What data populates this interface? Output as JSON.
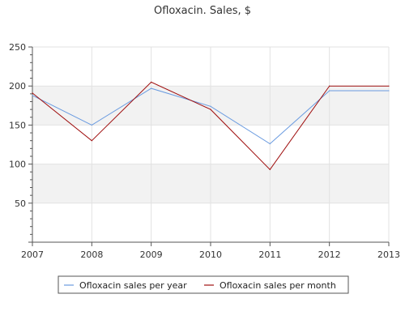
{
  "chart_data": {
    "type": "line",
    "title": "Ofloxacin. Sales, $",
    "xlabel": "",
    "ylabel": "",
    "x": [
      "2007",
      "2008",
      "2009",
      "2010",
      "2011",
      "2012",
      "2013"
    ],
    "ylim": [
      0,
      250
    ],
    "yticks": [
      50,
      100,
      150,
      200,
      250
    ],
    "grid": true,
    "banded_background": true,
    "legend_position": "bottom",
    "series": [
      {
        "name": "Ofloxacin sales per year",
        "color": "#6a9be0",
        "values": [
          188,
          150,
          197,
          174,
          126,
          194,
          194
        ]
      },
      {
        "name": "Ofloxacin sales per month",
        "color": "#a01010",
        "values": [
          191,
          130,
          205,
          170,
          93,
          200,
          200
        ]
      }
    ]
  }
}
